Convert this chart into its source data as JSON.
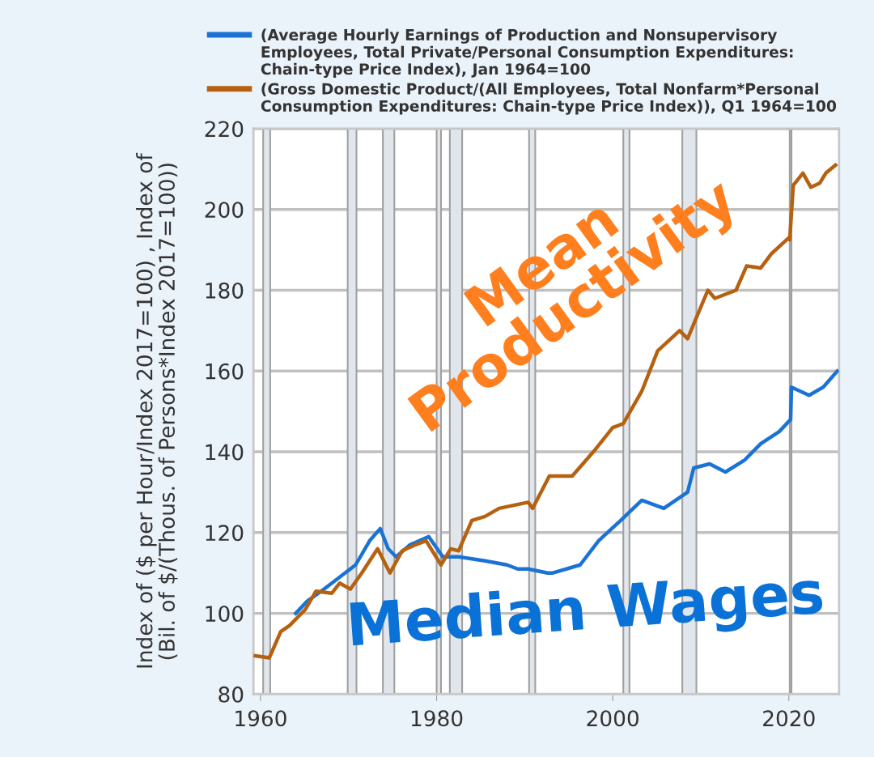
{
  "chart_data": {
    "type": "line",
    "ylabel": "Index of ($ per Hour/Index 2017=100) , Index of (Bil. of $/(Thous. of Persons*Index 2017=100))",
    "xlim": [
      1959.2,
      2025.7
    ],
    "xticks": [
      1960,
      1980,
      2000,
      2020
    ],
    "ylim": [
      80,
      220
    ],
    "yticks": [
      80,
      100,
      120,
      140,
      160,
      180,
      200,
      220
    ],
    "grid": "y",
    "legend": "top",
    "line_style": "solid",
    "marker": "none",
    "annotations": [
      "Mean Productivity",
      "Median Wages"
    ],
    "bands": [
      {
        "axis": "x",
        "from": 1960.3,
        "to": 1961.1,
        "color": "#e1e6ec"
      },
      {
        "axis": "x",
        "from": 1969.9,
        "to": 1970.9,
        "color": "#e1e6ec"
      },
      {
        "axis": "x",
        "from": 1973.9,
        "to": 1975.2,
        "color": "#e1e6ec"
      },
      {
        "axis": "x",
        "from": 1980.0,
        "to": 1980.5,
        "color": "#e1e6ec"
      },
      {
        "axis": "x",
        "from": 1981.5,
        "to": 1982.9,
        "color": "#e1e6ec"
      },
      {
        "axis": "x",
        "from": 1990.5,
        "to": 1991.2,
        "color": "#e1e6ec"
      },
      {
        "axis": "x",
        "from": 2001.2,
        "to": 2001.9,
        "color": "#e1e6ec"
      },
      {
        "axis": "x",
        "from": 2007.9,
        "to": 2009.5,
        "color": "#e1e6ec"
      },
      {
        "axis": "x",
        "from": 2020.1,
        "to": 2020.3,
        "color": "#e1e6ec"
      }
    ],
    "series": [
      {
        "name": "(Average Hourly Earnings of Production and Nonsupervisory Employees, Total Private/Personal Consumption Expenditures: Chain-type Price Index), Jan 1964=100",
        "color": "#1a73d4",
        "x": [
          1964.0,
          1965.3,
          1967.2,
          1969.0,
          1970.8,
          1972.4,
          1973.6,
          1974.5,
          1975.4,
          1977.0,
          1979.1,
          1980.7,
          1982.5,
          1985.5,
          1988.0,
          1989.2,
          1990.4,
          1992.6,
          1993.2,
          1996.3,
          1998.4,
          2000.9,
          2003.3,
          2005.8,
          2008.5,
          2009.2,
          2011.0,
          2012.8,
          2015.0,
          2016.8,
          2018.9,
          2020.2,
          2020.3,
          2022.3,
          2023.9,
          2025.5
        ],
        "values": [
          100,
          103,
          106,
          109,
          112,
          118,
          121,
          116,
          114,
          117,
          119,
          114,
          114,
          113,
          112,
          111,
          111,
          110,
          110,
          112,
          118,
          123,
          128,
          126,
          130,
          136,
          137,
          135,
          138,
          142,
          145,
          148,
          156,
          154,
          156,
          160
        ]
      },
      {
        "name": "(Gross Domestic Product/(All Employees, Total Nonfarm*Personal Consumption Expenditures: Chain-type Price Index)), Q1 1964=100",
        "color": "#b5610f",
        "x": [
          1959.4,
          1961.0,
          1962.3,
          1963.3,
          1965.1,
          1966.3,
          1968.1,
          1969.0,
          1970.2,
          1971.5,
          1973.3,
          1974.7,
          1976.1,
          1977.6,
          1978.8,
          1980.5,
          1981.6,
          1982.5,
          1984.0,
          1985.5,
          1987.1,
          1990.4,
          1990.9,
          1992.8,
          1995.4,
          1997.8,
          2000.0,
          2001.2,
          2003.3,
          2005.1,
          2007.6,
          2008.5,
          2010.8,
          2011.6,
          2014.0,
          2015.2,
          2016.8,
          2018.0,
          2020.0,
          2020.1,
          2020.5,
          2021.6,
          2022.5,
          2023.5,
          2024.2,
          2025.3
        ],
        "values": [
          89.5,
          89,
          95.5,
          97,
          101,
          105.5,
          105,
          107.5,
          106,
          110,
          116,
          110,
          115.5,
          117,
          118,
          112,
          116,
          115.5,
          123,
          124,
          126,
          127.5,
          126,
          134,
          134,
          140,
          146,
          147,
          155,
          165,
          170,
          168,
          180,
          178,
          180,
          186,
          185.5,
          189,
          193,
          192.5,
          206,
          209,
          205.5,
          206.5,
          209,
          211
        ]
      }
    ]
  }
}
